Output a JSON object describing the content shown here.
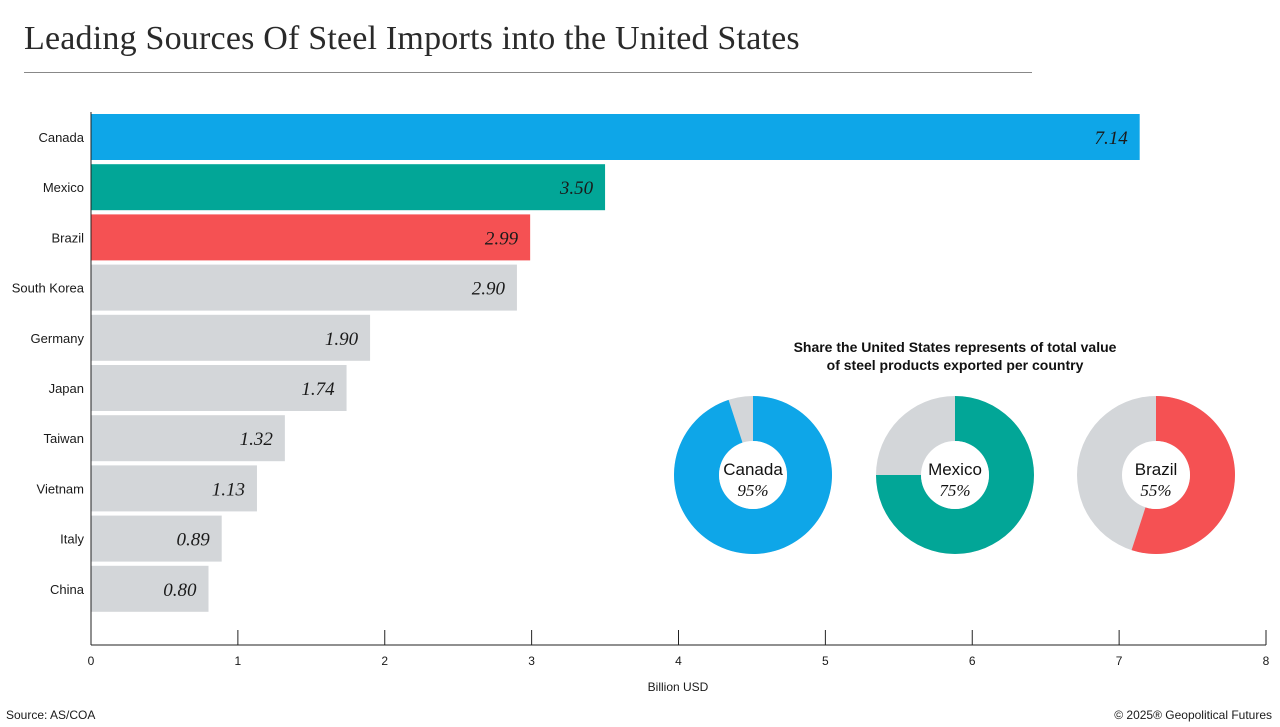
{
  "title": "Leading Sources Of Steel Imports into the United States",
  "source": "Source: AS/COA",
  "credit": "© 2025® Geopolitical Futures",
  "colors": {
    "canada": "#0ea6e8",
    "mexico": "#02a697",
    "brazil": "#f55153",
    "other": "#d3d6d9",
    "donut_rest": "#d3d6d9"
  },
  "chart_data": [
    {
      "type": "bar",
      "orientation": "horizontal",
      "categories": [
        "Canada",
        "Mexico",
        "Brazil",
        "South Korea",
        "Germany",
        "Japan",
        "Taiwan",
        "Vietnam",
        "Italy",
        "China"
      ],
      "values": [
        7.14,
        3.5,
        2.99,
        2.9,
        1.9,
        1.74,
        1.32,
        1.13,
        0.89,
        0.8
      ],
      "value_labels": [
        "7.14",
        "3.50",
        "2.99",
        "2.90",
        "1.90",
        "1.74",
        "1.32",
        "1.13",
        "0.89",
        "0.80"
      ],
      "bar_colors": [
        "#0ea6e8",
        "#02a697",
        "#f55153",
        "#d3d6d9",
        "#d3d6d9",
        "#d3d6d9",
        "#d3d6d9",
        "#d3d6d9",
        "#d3d6d9",
        "#d3d6d9"
      ],
      "xlabel": "Billion USD",
      "xlim": [
        0,
        8
      ],
      "xticks": [
        "0",
        "1",
        "2",
        "3",
        "4",
        "5",
        "6",
        "7",
        "8"
      ],
      "grid": false
    },
    {
      "type": "pie",
      "variant": "donut",
      "title": "Share the United States represents of total value of steel products exported per country",
      "title_lines": [
        "Share the United States represents of total value",
        "of steel products exported per country"
      ],
      "items": [
        {
          "name": "Canada",
          "value": 95,
          "label": "95%",
          "color": "#0ea6e8"
        },
        {
          "name": "Mexico",
          "value": 75,
          "label": "75%",
          "color": "#02a697"
        },
        {
          "name": "Brazil",
          "value": 55,
          "label": "55%",
          "color": "#f55153"
        }
      ]
    }
  ]
}
